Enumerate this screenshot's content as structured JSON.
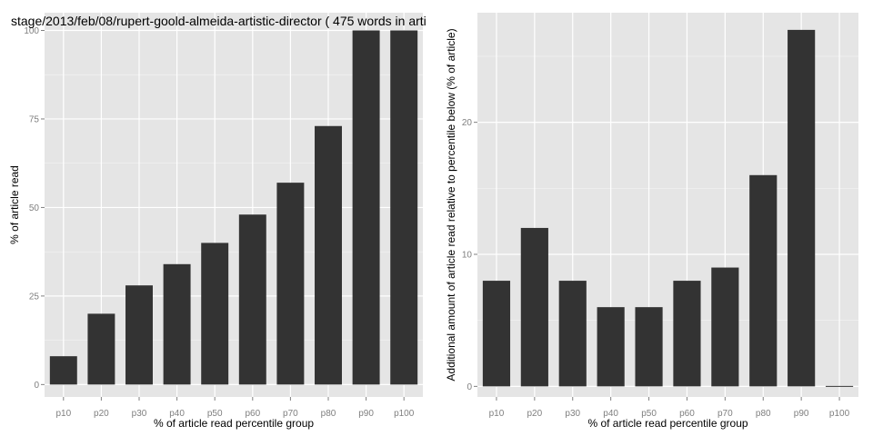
{
  "chart_data": [
    {
      "type": "bar",
      "title": "stage/2013/feb/08/rupert-goold-almeida-artistic-director ( 475 words in arti",
      "xlabel": "% of article read percentile group",
      "ylabel": "% of article read",
      "categories": [
        "p10",
        "p20",
        "p30",
        "p40",
        "p50",
        "p60",
        "p70",
        "p80",
        "p90",
        "p100"
      ],
      "values": [
        8,
        20,
        28,
        34,
        40,
        48,
        57,
        73,
        100,
        100
      ],
      "ylim": [
        -3.5,
        105
      ],
      "yticks": [
        0,
        25,
        50,
        75,
        100
      ],
      "grid": true,
      "colors": {
        "bar": "#333333",
        "panel": "#e5e5e5",
        "grid": "#ffffff"
      }
    },
    {
      "type": "bar",
      "title": "",
      "xlabel": "% of article read percentile group",
      "ylabel": "Additional amount of article read relative to percentile below (% of article)",
      "categories": [
        "p10",
        "p20",
        "p30",
        "p40",
        "p50",
        "p60",
        "p70",
        "p80",
        "p90",
        "p100"
      ],
      "values": [
        8,
        12,
        8,
        6,
        6,
        8,
        9,
        16,
        27,
        0
      ],
      "ylim": [
        -0.8,
        28.3
      ],
      "yticks": [
        0,
        10,
        20
      ],
      "grid": true,
      "colors": {
        "bar": "#333333",
        "panel": "#e5e5e5",
        "grid": "#ffffff"
      }
    }
  ]
}
